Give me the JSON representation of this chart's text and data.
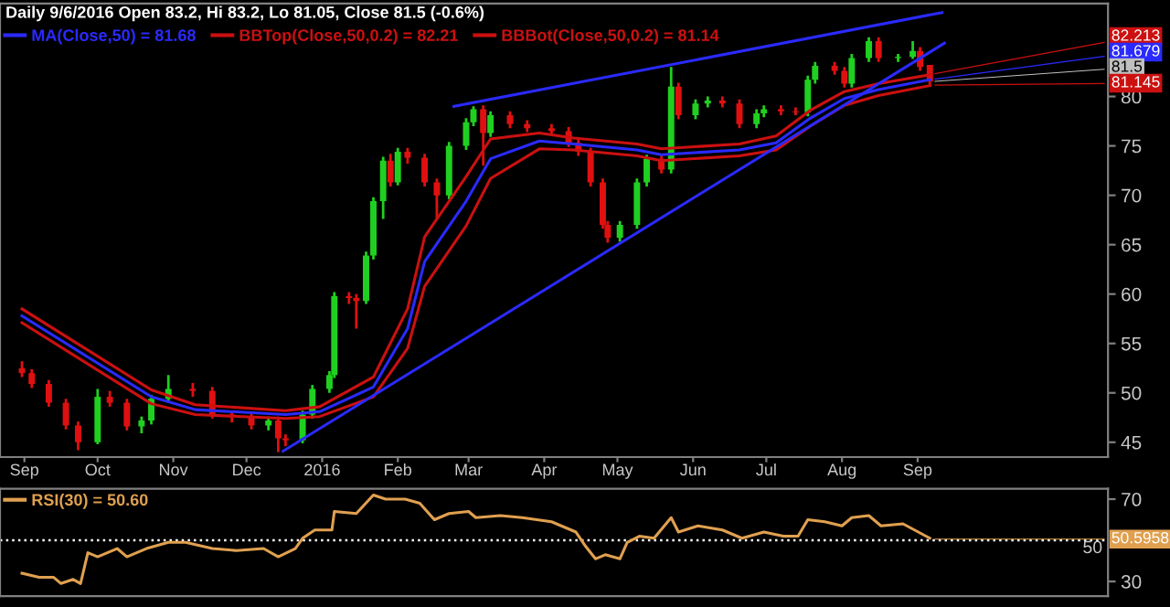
{
  "chart_data": [
    {
      "type": "candlestick",
      "title": "Daily 9/6/2016 Open 83.2, Hi 83.2, Lo 81.05, Close 81.5 (-0.6%)",
      "legend": "top left",
      "x": [
        "2015-08-31",
        "2015-09-04",
        "2015-09-11",
        "2015-09-18",
        "2015-09-23",
        "2015-10-01",
        "2015-10-06",
        "2015-10-13",
        "2015-10-19",
        "2015-10-23",
        "2015-10-30",
        "2015-11-09",
        "2015-11-17",
        "2015-11-25",
        "2015-12-03",
        "2015-12-10",
        "2015-12-14",
        "2015-12-17",
        "2015-12-24",
        "2015-12-28",
        "2016-01-04",
        "2016-01-06",
        "2016-01-12",
        "2016-01-15",
        "2016-01-19",
        "2016-01-22",
        "2016-01-26",
        "2016-01-29",
        "2016-02-01",
        "2016-02-05",
        "2016-02-12",
        "2016-02-17",
        "2016-02-22",
        "2016-02-29",
        "2016-03-03",
        "2016-03-07",
        "2016-03-10",
        "2016-03-18",
        "2016-03-25",
        "2016-04-04",
        "2016-04-11",
        "2016-04-15",
        "2016-04-20",
        "2016-04-25",
        "2016-04-27",
        "2016-05-02",
        "2016-05-09",
        "2016-05-13",
        "2016-05-19",
        "2016-05-23",
        "2016-05-26",
        "2016-06-02",
        "2016-06-07",
        "2016-06-13",
        "2016-06-20",
        "2016-06-27",
        "2016-06-30",
        "2016-07-07",
        "2016-07-13",
        "2016-07-18",
        "2016-07-21",
        "2016-07-29",
        "2016-08-02",
        "2016-08-05",
        "2016-08-12",
        "2016-08-16",
        "2016-08-24",
        "2016-08-30",
        "2016-09-02",
        "2016-09-06"
      ],
      "ohlc": [
        [
          52.5,
          53.2,
          51.6,
          52.0
        ],
        [
          52.0,
          52.4,
          50.5,
          50.9
        ],
        [
          50.9,
          51.3,
          48.6,
          49.0
        ],
        [
          49.0,
          49.4,
          46.3,
          46.7
        ],
        [
          46.7,
          47.1,
          44.2,
          45.0
        ],
        [
          45.0,
          50.4,
          44.8,
          49.6
        ],
        [
          49.6,
          50.2,
          48.6,
          49.0
        ],
        [
          49.0,
          49.4,
          46.2,
          46.6
        ],
        [
          46.6,
          47.6,
          45.9,
          47.2
        ],
        [
          47.2,
          49.8,
          46.8,
          49.4
        ],
        [
          49.4,
          51.8,
          49.0,
          50.4
        ],
        [
          50.4,
          51.0,
          49.6,
          50.2
        ],
        [
          50.2,
          50.6,
          47.4,
          47.8
        ],
        [
          47.8,
          48.2,
          47.0,
          47.6
        ],
        [
          47.6,
          48.0,
          46.3,
          46.7
        ],
        [
          46.7,
          47.6,
          46.2,
          47.2
        ],
        [
          47.2,
          47.6,
          44.0,
          45.4
        ],
        [
          45.4,
          45.8,
          44.6,
          45.2
        ],
        [
          45.2,
          48.2,
          44.9,
          47.8
        ],
        [
          47.8,
          50.8,
          47.4,
          50.4
        ],
        [
          50.4,
          52.2,
          50.0,
          51.8
        ],
        [
          51.8,
          60.2,
          51.5,
          59.8
        ],
        [
          59.8,
          60.2,
          59.0,
          59.6
        ],
        [
          59.6,
          60.0,
          56.5,
          59.3
        ],
        [
          59.3,
          64.3,
          59.0,
          63.9
        ],
        [
          63.9,
          69.8,
          63.5,
          69.4
        ],
        [
          69.4,
          73.9,
          67.6,
          73.5
        ],
        [
          73.5,
          74.2,
          70.9,
          71.3
        ],
        [
          71.3,
          74.8,
          71.0,
          74.4
        ],
        [
          74.4,
          74.8,
          73.2,
          73.8
        ],
        [
          73.8,
          74.2,
          70.9,
          71.3
        ],
        [
          71.3,
          71.7,
          67.6,
          70.0
        ],
        [
          70.0,
          75.4,
          69.6,
          75.0
        ],
        [
          75.0,
          77.8,
          74.6,
          77.4
        ],
        [
          77.4,
          79.0,
          77.0,
          78.7
        ],
        [
          78.7,
          79.1,
          73.0,
          76.3
        ],
        [
          76.3,
          78.5,
          75.9,
          78.1
        ],
        [
          78.1,
          78.5,
          76.8,
          77.2
        ],
        [
          77.2,
          77.6,
          76.4,
          76.8
        ],
        [
          76.8,
          77.2,
          76.1,
          76.5
        ],
        [
          76.5,
          76.9,
          74.9,
          75.3
        ],
        [
          75.3,
          75.7,
          74.0,
          74.4
        ],
        [
          74.4,
          74.8,
          70.9,
          71.3
        ],
        [
          71.3,
          71.7,
          66.6,
          67.0
        ],
        [
          67.0,
          67.4,
          65.2,
          65.7
        ],
        [
          65.7,
          67.4,
          65.3,
          67.0
        ],
        [
          67.0,
          71.7,
          66.6,
          71.3
        ],
        [
          71.3,
          74.1,
          70.9,
          73.7
        ],
        [
          73.7,
          74.1,
          72.2,
          72.6
        ],
        [
          72.6,
          83.0,
          72.2,
          81.0
        ],
        [
          81.0,
          81.4,
          77.7,
          78.1
        ],
        [
          78.1,
          79.7,
          77.7,
          79.3
        ],
        [
          79.3,
          80.0,
          78.9,
          79.6
        ],
        [
          79.6,
          80.0,
          78.9,
          79.3
        ],
        [
          79.3,
          79.7,
          76.8,
          77.2
        ],
        [
          77.2,
          78.7,
          76.8,
          78.3
        ],
        [
          78.3,
          79.1,
          77.9,
          78.7
        ],
        [
          78.7,
          79.1,
          78.1,
          78.5
        ],
        [
          78.5,
          78.9,
          78.1,
          78.4
        ],
        [
          78.4,
          82.1,
          78.0,
          81.7
        ],
        [
          81.7,
          83.5,
          81.3,
          83.1
        ],
        [
          83.1,
          83.5,
          82.2,
          82.6
        ],
        [
          82.6,
          83.0,
          80.9,
          81.3
        ],
        [
          81.3,
          84.3,
          80.9,
          83.9
        ],
        [
          83.9,
          86.0,
          83.5,
          85.6
        ],
        [
          85.6,
          86.0,
          83.5,
          83.9
        ],
        [
          83.9,
          84.3,
          83.5,
          84.0
        ],
        [
          84.0,
          85.6,
          83.8,
          84.6
        ],
        [
          84.6,
          85.0,
          82.6,
          83.0
        ],
        [
          83.2,
          83.2,
          81.05,
          81.5
        ]
      ],
      "colors": [
        "#e01010",
        "#e01010",
        "#e01010",
        "#e01010",
        "#e01010",
        "#20d020",
        "#e01010",
        "#e01010",
        "#20d020",
        "#20d020",
        "#20d020",
        "#e01010",
        "#e01010",
        "#e01010",
        "#e01010",
        "#20d020",
        "#e01010",
        "#e01010",
        "#20d020",
        "#20d020",
        "#20d020",
        "#20d020",
        "#e01010",
        "#e01010",
        "#20d020",
        "#20d020",
        "#20d020",
        "#e01010",
        "#20d020",
        "#e01010",
        "#e01010",
        "#e01010",
        "#20d020",
        "#20d020",
        "#20d020",
        "#e01010",
        "#20d020",
        "#e01010",
        "#e01010",
        "#e01010",
        "#e01010",
        "#e01010",
        "#e01010",
        "#e01010",
        "#e01010",
        "#20d020",
        "#20d020",
        "#20d020",
        "#e01010",
        "#20d020",
        "#e01010",
        "#20d020",
        "#20d020",
        "#e01010",
        "#e01010",
        "#20d020",
        "#20d020",
        "#e01010",
        "#e01010",
        "#20d020",
        "#20d020",
        "#e01010",
        "#e01010",
        "#20d020",
        "#20d020",
        "#e01010",
        "#20d020",
        "#20d020",
        "#e01010",
        "#e01010"
      ],
      "series": [
        {
          "type": "line",
          "name": "MA(Close,50) = 81.68",
          "color": "#2a2aff",
          "x": [
            "2015-08-31",
            "2015-10-23",
            "2015-11-10",
            "2015-12-17",
            "2015-12-31",
            "2016-01-22",
            "2016-02-05",
            "2016-02-12",
            "2016-02-29",
            "2016-03-10",
            "2016-03-30",
            "2016-04-13",
            "2016-05-09",
            "2016-05-19",
            "2016-06-20",
            "2016-07-05",
            "2016-07-19",
            "2016-08-02",
            "2016-08-16",
            "2016-09-06"
          ],
          "values": [
            57.8,
            49.6,
            48.3,
            47.8,
            48.1,
            50.6,
            56.5,
            63.3,
            69.4,
            73.7,
            75.5,
            75.2,
            74.6,
            74.1,
            74.6,
            75.3,
            77.8,
            79.8,
            80.7,
            81.7
          ]
        },
        {
          "type": "line",
          "name": "BBTop(Close,50,0.2) = 82.21",
          "color": "#cc1010",
          "x": [
            "2015-08-31",
            "2015-10-23",
            "2015-11-10",
            "2015-12-17",
            "2015-12-31",
            "2016-01-22",
            "2016-02-05",
            "2016-02-12",
            "2016-02-29",
            "2016-03-10",
            "2016-03-30",
            "2016-04-13",
            "2016-05-09",
            "2016-05-19",
            "2016-06-20",
            "2016-07-05",
            "2016-07-19",
            "2016-08-02",
            "2016-08-16",
            "2016-09-06"
          ],
          "values": [
            58.5,
            50.3,
            48.8,
            48.2,
            48.6,
            51.6,
            58.5,
            65.8,
            71.9,
            75.7,
            76.3,
            75.8,
            75.2,
            74.7,
            75.2,
            76.0,
            78.6,
            80.5,
            81.3,
            82.2
          ]
        },
        {
          "type": "line",
          "name": "BBBot(Close,50,0.2) = 81.14",
          "color": "#cc1010",
          "x": [
            "2015-08-31",
            "2015-10-23",
            "2015-11-10",
            "2015-12-17",
            "2015-12-31",
            "2016-01-22",
            "2016-02-05",
            "2016-02-12",
            "2016-02-29",
            "2016-03-10",
            "2016-03-30",
            "2016-04-13",
            "2016-05-09",
            "2016-05-19",
            "2016-06-20",
            "2016-07-05",
            "2016-07-19",
            "2016-08-02",
            "2016-08-16",
            "2016-09-06"
          ],
          "values": [
            57.1,
            48.9,
            47.8,
            47.4,
            47.6,
            49.6,
            54.5,
            60.8,
            66.9,
            71.7,
            74.7,
            74.6,
            74.0,
            73.5,
            74.0,
            74.6,
            77.0,
            79.1,
            80.1,
            81.1
          ]
        },
        {
          "type": "line",
          "color": "#2a2aff",
          "x": [
            "2016-02-24",
            "2016-09-11"
          ],
          "values": [
            79.0,
            88.5
          ]
        },
        {
          "type": "line",
          "color": "#2a2aff",
          "x": [
            "2015-12-16",
            "2016-09-12"
          ],
          "values": [
            44.1,
            85.4
          ]
        }
      ],
      "xlim": [
        "2015-08-22",
        "2016-11-18"
      ],
      "xticks": [
        {
          "value": "2015-09-01",
          "label": "Sep"
        },
        {
          "value": "2015-10-01",
          "label": "Oct"
        },
        {
          "value": "2015-11-01",
          "label": "Nov"
        },
        {
          "value": "2015-12-01",
          "label": "Dec"
        },
        {
          "value": "2016-01-01",
          "label": "2016"
        },
        {
          "value": "2016-02-01",
          "label": "Feb"
        },
        {
          "value": "2016-03-01",
          "label": "Mar"
        },
        {
          "value": "2016-04-01",
          "label": "Apr"
        },
        {
          "value": "2016-05-01",
          "label": "May"
        },
        {
          "value": "2016-06-01",
          "label": "Jun"
        },
        {
          "value": "2016-07-01",
          "label": "Jul"
        },
        {
          "value": "2016-08-01",
          "label": "Aug"
        },
        {
          "value": "2016-09-01",
          "label": "Sep"
        }
      ],
      "ylim": [
        43.5,
        89.4
      ],
      "yticks": [
        45,
        50,
        55,
        60,
        65,
        70,
        75,
        80
      ],
      "annotations": [
        {
          "text": "82.213",
          "x": "2016-09-06",
          "y": 82.213
        },
        {
          "text": "81.679",
          "x": "2016-09-06",
          "y": 81.679
        },
        {
          "text": "81.5",
          "x": "2016-09-06",
          "y": 81.5
        },
        {
          "text": "81.145",
          "x": "2016-09-06",
          "y": 81.145
        }
      ]
    },
    {
      "type": "line",
      "legend": "top left",
      "tick_labels": "y",
      "series": [
        {
          "name": "RSI(30) = 50.60",
          "color": "#e0a050",
          "x": [
            "2015-08-31",
            "2015-09-07",
            "2015-09-13",
            "2015-09-16",
            "2015-09-21",
            "2015-09-24",
            "2015-09-27",
            "2015-10-01",
            "2015-10-09",
            "2015-10-13",
            "2015-10-21",
            "2015-10-30",
            "2015-11-06",
            "2015-11-17",
            "2015-11-27",
            "2015-12-08",
            "2015-12-14",
            "2015-12-21",
            "2015-12-24",
            "2015-12-29",
            "2016-01-05",
            "2016-01-06",
            "2016-01-15",
            "2016-01-22",
            "2016-01-27",
            "2016-02-04",
            "2016-02-10",
            "2016-02-16",
            "2016-02-22",
            "2016-03-01",
            "2016-03-04",
            "2016-03-14",
            "2016-03-23",
            "2016-04-04",
            "2016-04-14",
            "2016-04-18",
            "2016-04-22",
            "2016-04-26",
            "2016-05-02",
            "2016-05-05",
            "2016-05-10",
            "2016-05-16",
            "2016-05-23",
            "2016-05-26",
            "2016-06-03",
            "2016-06-13",
            "2016-06-21",
            "2016-06-30",
            "2016-07-08",
            "2016-07-14",
            "2016-07-18",
            "2016-07-25",
            "2016-08-01",
            "2016-08-05",
            "2016-08-12",
            "2016-08-17",
            "2016-08-26",
            "2016-09-06"
          ],
          "values": [
            34,
            32,
            32,
            29,
            31,
            29,
            44,
            42,
            46,
            42,
            46,
            49,
            49,
            46,
            45,
            46,
            42,
            46,
            51,
            55,
            55,
            64,
            63,
            72,
            70,
            70,
            68,
            60,
            63,
            64,
            61,
            62,
            61,
            59,
            54,
            47,
            41,
            43,
            41,
            49,
            52,
            51,
            61,
            54,
            57,
            55,
            51,
            54,
            52,
            52,
            60,
            59,
            57,
            61,
            62,
            57,
            58,
            51
          ]
        }
      ],
      "xlim": [
        "2015-08-22",
        "2016-11-18"
      ],
      "ylim": [
        22.9,
        75.1
      ],
      "yticks": [
        30,
        70
      ],
      "ref_lines": [
        {
          "axis": "y",
          "value": 50,
          "label": "50",
          "color": "#ffffff",
          "line_style": "dotted"
        }
      ],
      "annotations": [
        {
          "text": "50.5958",
          "x": "2016-09-06",
          "y": 50.5958
        }
      ]
    }
  ]
}
